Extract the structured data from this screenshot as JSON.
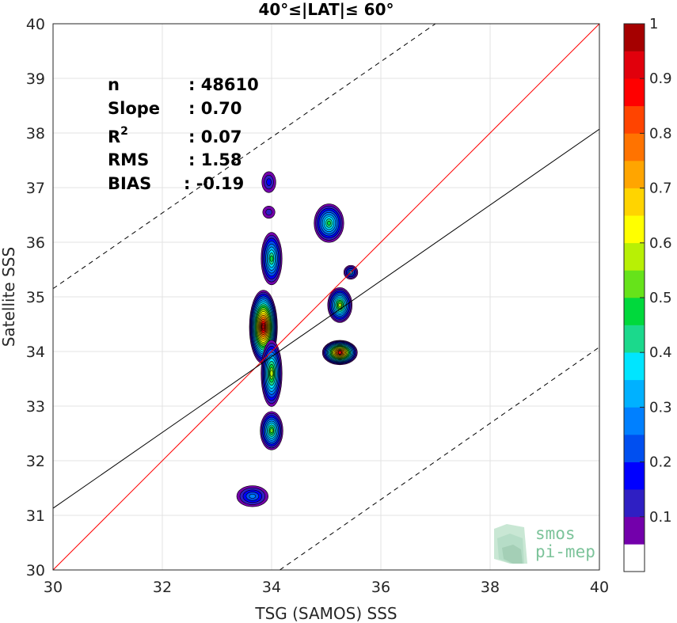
{
  "chart_data": {
    "type": "contour",
    "title": "40°≤|LAT|≤ 60°",
    "xlabel": "TSG (SAMOS) SSS",
    "ylabel": "Satellite SSS",
    "xlim": [
      30,
      40
    ],
    "ylim": [
      30,
      40
    ],
    "xticks": [
      "30",
      "32",
      "34",
      "36",
      "38",
      "40"
    ],
    "yticks": [
      "30",
      "31",
      "32",
      "33",
      "34",
      "35",
      "36",
      "37",
      "38",
      "39",
      "40"
    ],
    "grid": true,
    "stats": [
      {
        "label": "n",
        "value": ": 48610"
      },
      {
        "label": "Slope",
        "value": ": 0.70"
      },
      {
        "label": "R",
        "sup": "2",
        "value": ": 0.07"
      },
      {
        "label": "RMS",
        "value": ": 1.58"
      },
      {
        "label": "BIAS",
        "value": ": -0.19"
      }
    ],
    "lines": [
      {
        "name": "one-to-one",
        "color": "#ff0000",
        "style": "solid",
        "points": [
          [
            30,
            30
          ],
          [
            40,
            40
          ]
        ]
      },
      {
        "name": "regression",
        "color": "#000000",
        "style": "solid",
        "points": [
          [
            30,
            31.13
          ],
          [
            40,
            38.07
          ]
        ]
      },
      {
        "name": "upper bound",
        "color": "#000000",
        "style": "dashed",
        "points": [
          [
            30,
            35.15
          ],
          [
            37,
            40
          ]
        ]
      },
      {
        "name": "lower bound",
        "color": "#000000",
        "style": "dashed",
        "points": [
          [
            34.15,
            30
          ],
          [
            40,
            34.08
          ]
        ]
      }
    ],
    "density_peaks": [
      {
        "x": 33.85,
        "y": 34.45,
        "level": 0.95
      },
      {
        "x": 35.25,
        "y": 33.98,
        "level": 0.9
      },
      {
        "x": 34.0,
        "y": 33.6,
        "level": 0.55
      },
      {
        "x": 34.0,
        "y": 35.7,
        "level": 0.45
      },
      {
        "x": 34.0,
        "y": 32.55,
        "level": 0.5
      },
      {
        "x": 35.25,
        "y": 34.85,
        "level": 0.55
      },
      {
        "x": 35.05,
        "y": 36.35,
        "level": 0.45
      },
      {
        "x": 35.45,
        "y": 35.45,
        "level": 0.3
      },
      {
        "x": 33.65,
        "y": 31.35,
        "level": 0.25
      },
      {
        "x": 33.95,
        "y": 37.1,
        "level": 0.15
      },
      {
        "x": 33.95,
        "y": 36.55,
        "level": 0.12
      }
    ],
    "colorbar": {
      "ticks": [
        "0.1",
        "0.2",
        "0.3",
        "0.4",
        "0.5",
        "0.6",
        "0.7",
        "0.8",
        "0.9",
        "1"
      ],
      "colors": [
        "#ffffff",
        "#7300ab",
        "#2f1fc3",
        "#0000ff",
        "#004ff0",
        "#0080ff",
        "#00b1ff",
        "#00e5ff",
        "#1bd98c",
        "#00d93c",
        "#66e31a",
        "#b8f005",
        "#ffff00",
        "#ffd400",
        "#ffa500",
        "#ff7300",
        "#ff4400",
        "#ff0000",
        "#e1000c",
        "#a50000"
      ]
    }
  },
  "logo": {
    "line1": "smos",
    "line2": "pi-mep"
  }
}
